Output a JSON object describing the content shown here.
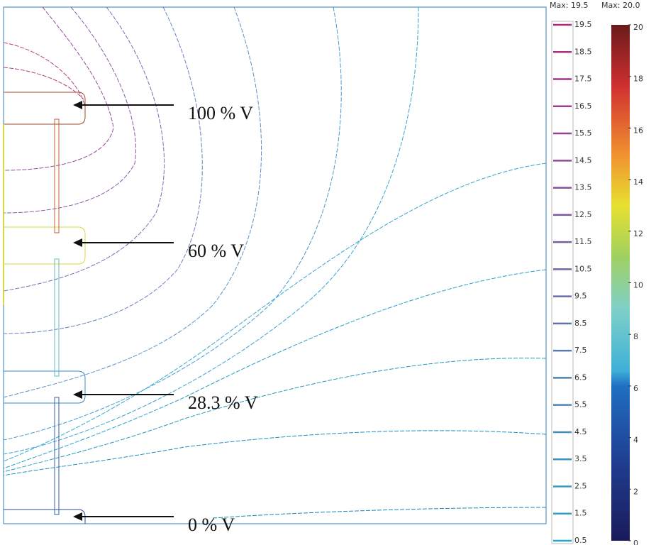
{
  "annotations": [
    "100 % V",
    "60 % V",
    "28.3 % V",
    "0 % V"
  ],
  "contour_legend": {
    "max_label": "Max: 19.5",
    "ticks": [
      0.5,
      1.5,
      2.5,
      3.5,
      4.5,
      5.5,
      6.5,
      7.5,
      8.5,
      9.5,
      10.5,
      11.5,
      12.5,
      13.5,
      14.5,
      15.5,
      16.5,
      17.5,
      18.5,
      19.5
    ]
  },
  "color_legend": {
    "max_label": "Max: 20.0",
    "ticks": [
      0,
      2,
      4,
      6,
      8,
      10,
      12,
      14,
      16,
      18,
      20
    ]
  }
}
